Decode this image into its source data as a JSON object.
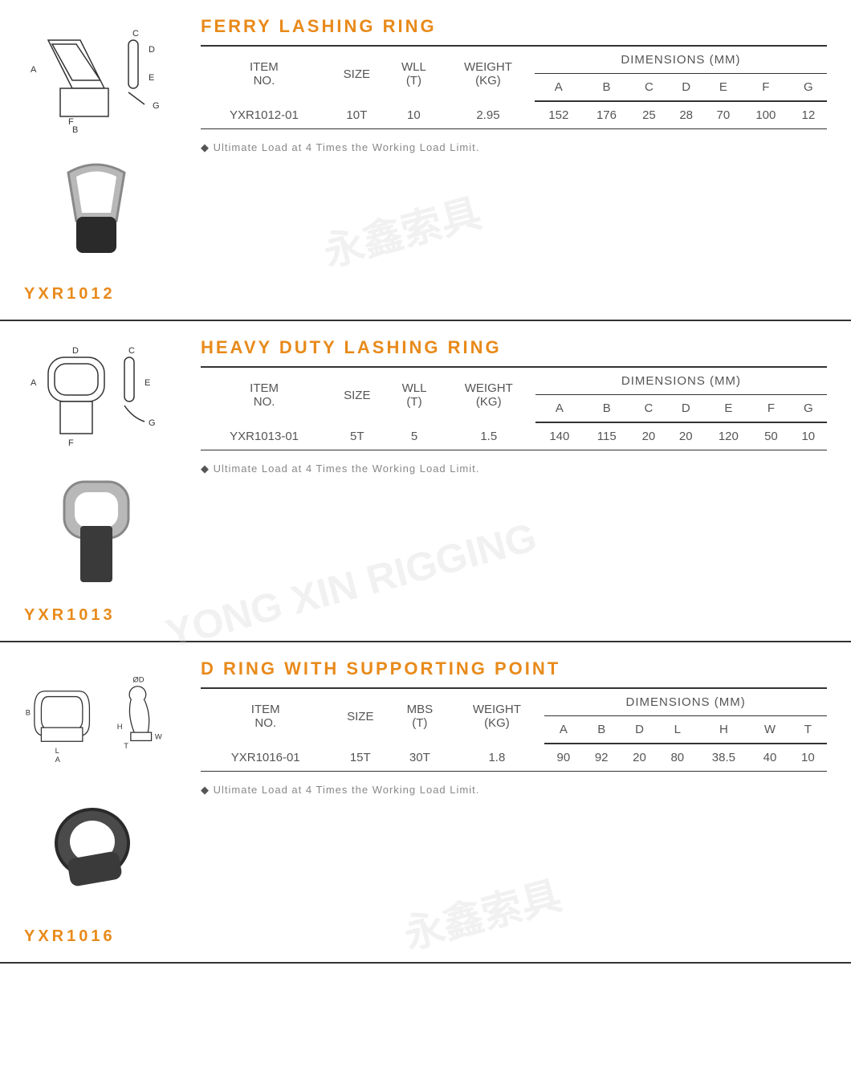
{
  "sections": [
    {
      "title": "FERRY LASHING RING",
      "code": "YXR1012",
      "col3_label": "WLL",
      "dim_cols": [
        "A",
        "B",
        "C",
        "D",
        "E",
        "F",
        "G"
      ],
      "diagram_labels": [
        "A",
        "B",
        "C",
        "D",
        "E",
        "F",
        "G"
      ],
      "row": {
        "item": "YXR1012-01",
        "size": "10T",
        "col3": "10",
        "weight": "2.95",
        "dims": [
          "152",
          "176",
          "25",
          "28",
          "70",
          "100",
          "12"
        ]
      },
      "footnote": "Ultimate Load at 4 Times the Working Load Limit."
    },
    {
      "title": "HEAVY DUTY LASHING RING",
      "code": "YXR1013",
      "col3_label": "WLL",
      "dim_cols": [
        "A",
        "B",
        "C",
        "D",
        "E",
        "F",
        "G"
      ],
      "diagram_labels": [
        "A",
        "C",
        "D",
        "E",
        "F",
        "G"
      ],
      "row": {
        "item": "YXR1013-01",
        "size": "5T",
        "col3": "5",
        "weight": "1.5",
        "dims": [
          "140",
          "115",
          "20",
          "20",
          "120",
          "50",
          "10"
        ]
      },
      "footnote": "Ultimate Load at 4 Times the Working Load Limit."
    },
    {
      "title": "D RING WITH SUPPORTING POINT",
      "code": "YXR1016",
      "col3_label": "MBS",
      "dim_cols": [
        "A",
        "B",
        "D",
        "L",
        "H",
        "W",
        "T"
      ],
      "diagram_labels": [
        "A",
        "B",
        "ØD",
        "L",
        "H",
        "W",
        "T"
      ],
      "row": {
        "item": "YXR1016-01",
        "size": "15T",
        "col3": "30T",
        "weight": "1.8",
        "dims": [
          "90",
          "92",
          "20",
          "80",
          "38.5",
          "40",
          "10"
        ]
      },
      "footnote": "Ultimate Load at 4 Times the Working Load Limit."
    }
  ],
  "table_headers": {
    "item": "ITEM NO.",
    "size": "SIZE",
    "col3_unit": "(T)",
    "weight": "WEIGHT",
    "weight_unit": "(KG)",
    "dimensions": "DIMENSIONS (MM)"
  },
  "colors": {
    "accent": "#e88a1a",
    "text": "#555555",
    "border": "#333333",
    "footnote": "#888888"
  }
}
